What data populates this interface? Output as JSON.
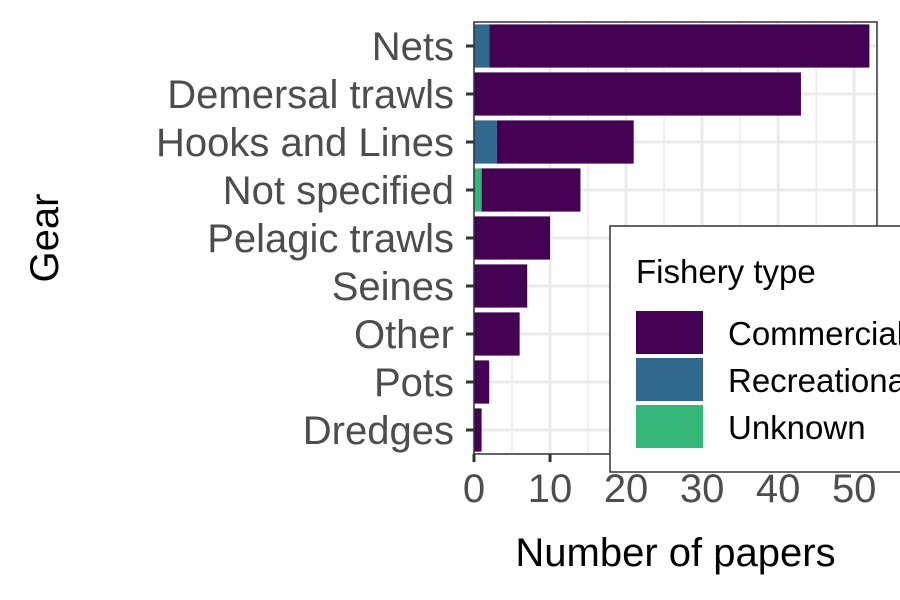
{
  "chart_data": {
    "type": "bar",
    "orientation": "horizontal",
    "stacked": true,
    "categories": [
      "Nets",
      "Demersal trawls",
      "Hooks and Lines",
      "Not specified",
      "Pelagic trawls",
      "Seines",
      "Other",
      "Pots",
      "Dredges"
    ],
    "series": [
      {
        "name": "Commercial",
        "color": "#440154",
        "values": [
          50,
          43,
          18,
          13,
          10,
          7,
          6,
          2,
          1
        ]
      },
      {
        "name": "Recreational",
        "color": "#31688E",
        "values": [
          2,
          0,
          3,
          0,
          0,
          0,
          0,
          0,
          0
        ]
      },
      {
        "name": "Unknown",
        "color": "#35B779",
        "values": [
          0,
          0,
          0,
          1,
          0,
          0,
          0,
          0,
          0
        ]
      }
    ],
    "xlabel": "Number of papers",
    "ylabel": "Gear",
    "xlim": [
      0,
      53
    ],
    "xticks": [
      0,
      10,
      20,
      30,
      40,
      50
    ],
    "grid": true,
    "legend": {
      "title": "Fishery type",
      "position": "right"
    }
  }
}
